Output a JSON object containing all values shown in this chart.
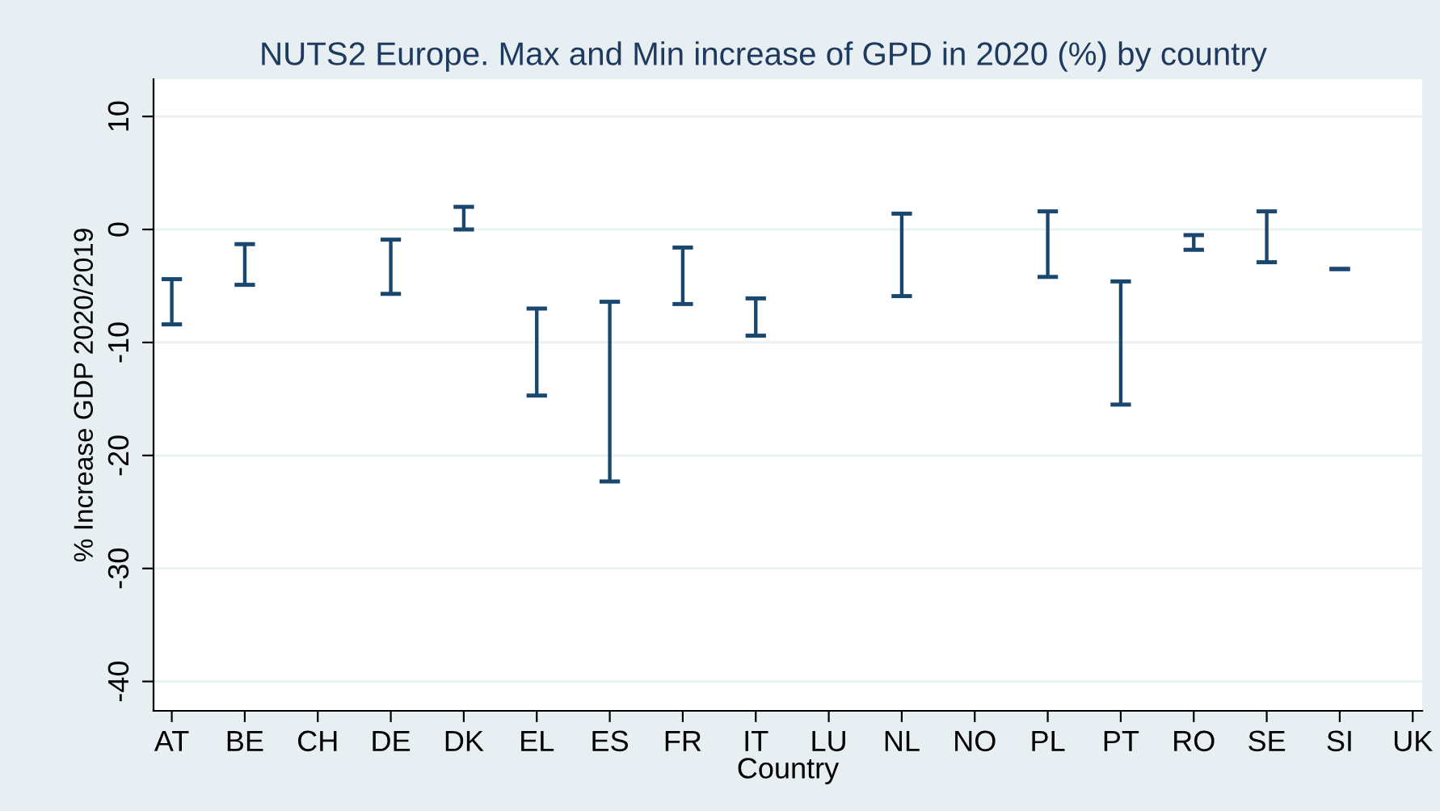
{
  "chart_data": {
    "type": "bar",
    "title": "NUTS2 Europe. Max and Min increase of GPD in 2020 (%) by country",
    "xlabel": "Country",
    "ylabel": "% Increase GDP 2020/2019",
    "categories": [
      "AT",
      "BE",
      "CH",
      "DE",
      "DK",
      "EL",
      "ES",
      "FR",
      "IT",
      "LU",
      "NL",
      "NO",
      "PL",
      "PT",
      "RO",
      "SE",
      "SI",
      "UK"
    ],
    "base": [
      -8.4,
      -4.9,
      null,
      -5.7,
      0,
      -14.7,
      -22.3,
      -6.6,
      -9.4,
      null,
      -5.9,
      null,
      -4.2,
      -15.5,
      -1.8,
      -2.9,
      -3.5,
      null
    ],
    "values": [
      4.0,
      3.6,
      null,
      4.8,
      2.0,
      7.7,
      15.9,
      5.0,
      3.3,
      null,
      7.3,
      null,
      5.8,
      10.9,
      1.3,
      4.5,
      0,
      null
    ],
    "color": "#1a476f",
    "ylim": [
      -42.6,
      13.3
    ],
    "yticks": [
      -40,
      -30,
      -20,
      -10,
      0,
      10
    ],
    "grid": "y"
  }
}
